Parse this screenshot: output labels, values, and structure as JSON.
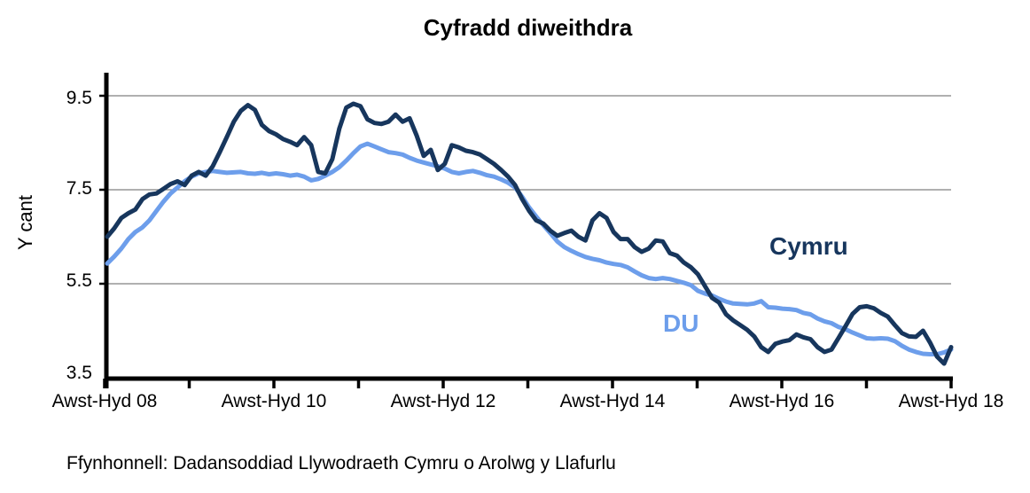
{
  "title": "Cyfradd diweithdra",
  "y_axis": {
    "label": "Y cant",
    "tick_labels": [
      "9.5",
      "7.5",
      "5.5",
      "3.5"
    ]
  },
  "x_axis": {
    "tick_labels": [
      "Awst-Hyd 08",
      "Awst-Hyd 10",
      "Awst-Hyd 12",
      "Awst-Hyd 14",
      "Awst-Hyd 16",
      "Awst-Hyd 18"
    ]
  },
  "series_labels": {
    "cymru": "Cymru",
    "du": "DU"
  },
  "source_note": "Ffynhonnell: Dadansoddiad Llywodraeth Cymru o Arolwg y Llafurlu",
  "colors": {
    "cymru_line": "#17365D",
    "du_line": "#6D9EEB",
    "gridline": "#808080",
    "axis": "#000000",
    "text": "#000000"
  },
  "chart_data": {
    "type": "line",
    "title": "Cyfradd diweithdra",
    "ylabel": "Y cant",
    "ylim": [
      3.5,
      9.5
    ],
    "y_ticks": [
      3.5,
      5.5,
      7.5,
      9.5
    ],
    "gridline_values": [
      9.5,
      7.5,
      5.5
    ],
    "grid": "horizontal-only",
    "legend": "inline-labels-on-plot",
    "x_tick_labels": [
      "Awst-Hyd 08",
      "Awst-Hyd 10",
      "Awst-Hyd 12",
      "Awst-Hyd 14",
      "Awst-Hyd 16",
      "Awst-Hyd 18"
    ],
    "x_note": "121 monthly rolling 3-month points, evenly spaced from Awst-Hyd 08 to Awst-Hyd 18; one x tick per year, labels every 2 years",
    "series": [
      {
        "name": "Cymru",
        "color": "#17365D",
        "values": [
          6.5,
          6.68,
          6.9,
          7.0,
          7.08,
          7.3,
          7.4,
          7.42,
          7.52,
          7.62,
          7.68,
          7.6,
          7.8,
          7.88,
          7.8,
          8.0,
          8.3,
          8.62,
          8.95,
          9.18,
          9.3,
          9.2,
          8.88,
          8.75,
          8.68,
          8.58,
          8.52,
          8.45,
          8.62,
          8.45,
          7.88,
          7.85,
          8.15,
          8.8,
          9.25,
          9.33,
          9.28,
          9.0,
          8.92,
          8.9,
          8.95,
          9.1,
          8.95,
          9.02,
          8.65,
          8.22,
          8.35,
          7.92,
          8.05,
          8.45,
          8.4,
          8.33,
          8.3,
          8.25,
          8.15,
          8.05,
          7.92,
          7.78,
          7.6,
          7.3,
          7.05,
          6.85,
          6.78,
          6.63,
          6.52,
          6.58,
          6.63,
          6.5,
          6.42,
          6.85,
          7.0,
          6.9,
          6.6,
          6.45,
          6.45,
          6.28,
          6.18,
          6.25,
          6.42,
          6.4,
          6.15,
          6.1,
          5.95,
          5.85,
          5.7,
          5.45,
          5.2,
          5.1,
          4.85,
          4.72,
          4.62,
          4.52,
          4.38,
          4.15,
          4.05,
          4.22,
          4.27,
          4.3,
          4.42,
          4.36,
          4.32,
          4.15,
          4.05,
          4.1,
          4.35,
          4.6,
          4.86,
          5.0,
          5.02,
          4.98,
          4.88,
          4.8,
          4.62,
          4.45,
          4.38,
          4.37,
          4.5,
          4.25,
          3.95,
          3.8,
          4.15
        ]
      },
      {
        "name": "DU",
        "color": "#6D9EEB",
        "values": [
          5.93,
          6.08,
          6.25,
          6.45,
          6.6,
          6.7,
          6.85,
          7.05,
          7.25,
          7.42,
          7.55,
          7.68,
          7.78,
          7.85,
          7.88,
          7.9,
          7.88,
          7.86,
          7.87,
          7.88,
          7.85,
          7.84,
          7.86,
          7.83,
          7.85,
          7.83,
          7.8,
          7.82,
          7.78,
          7.7,
          7.73,
          7.8,
          7.88,
          7.98,
          8.12,
          8.28,
          8.42,
          8.48,
          8.42,
          8.36,
          8.3,
          8.28,
          8.25,
          8.18,
          8.12,
          8.08,
          8.04,
          8.0,
          7.95,
          7.88,
          7.85,
          7.88,
          7.9,
          7.86,
          7.81,
          7.78,
          7.72,
          7.65,
          7.55,
          7.35,
          7.12,
          6.93,
          6.75,
          6.58,
          6.4,
          6.28,
          6.2,
          6.13,
          6.07,
          6.03,
          6.0,
          5.95,
          5.92,
          5.9,
          5.85,
          5.76,
          5.68,
          5.62,
          5.6,
          5.62,
          5.6,
          5.56,
          5.52,
          5.47,
          5.35,
          5.29,
          5.25,
          5.18,
          5.12,
          5.08,
          5.07,
          5.06,
          5.08,
          5.13,
          5.0,
          4.99,
          4.97,
          4.96,
          4.94,
          4.88,
          4.85,
          4.76,
          4.7,
          4.66,
          4.58,
          4.53,
          4.46,
          4.4,
          4.34,
          4.33,
          4.34,
          4.33,
          4.28,
          4.18,
          4.1,
          4.05,
          4.01,
          4.0,
          4.0,
          4.04,
          4.1
        ]
      }
    ]
  }
}
